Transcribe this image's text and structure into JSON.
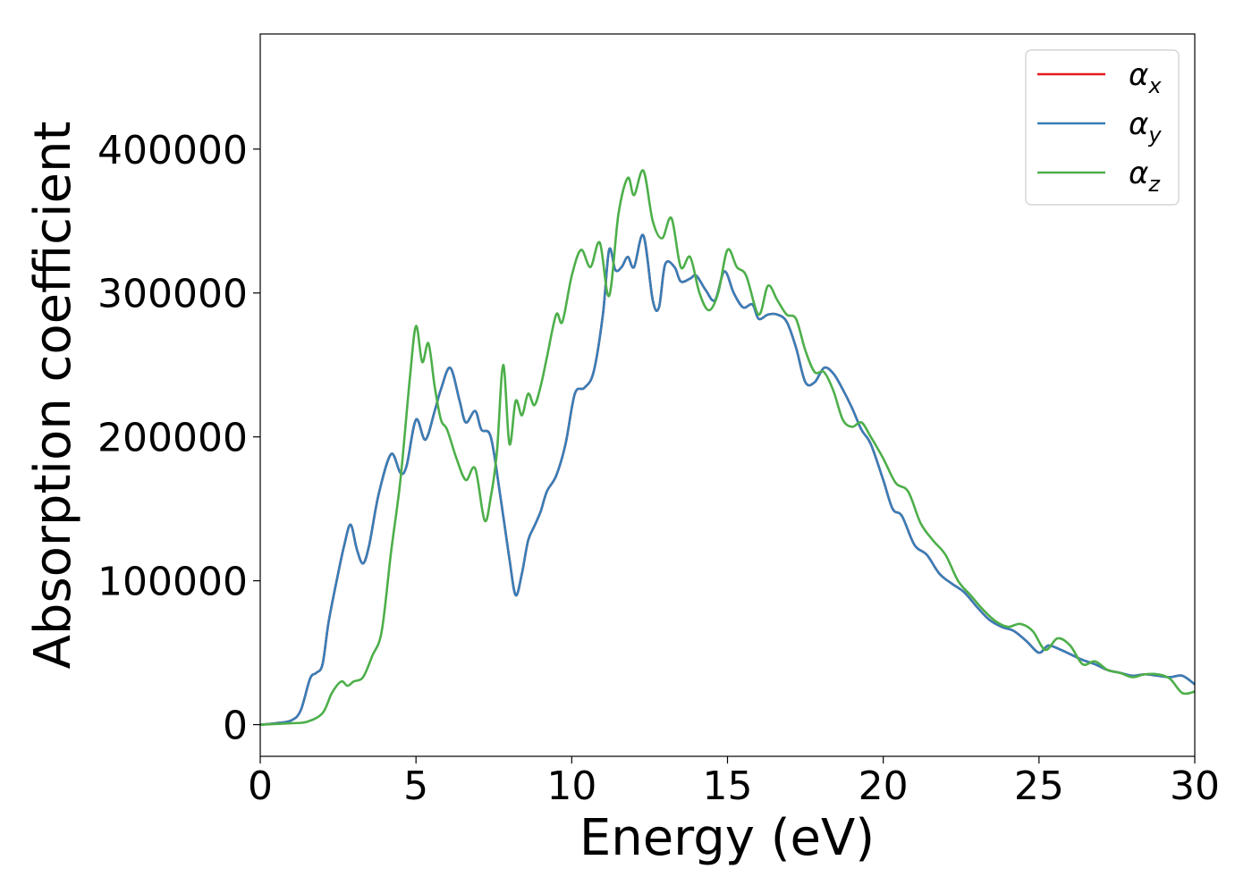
{
  "chart_data": {
    "type": "line",
    "title": "",
    "xlabel": "Energy (eV)",
    "ylabel": "Absorption coefficient",
    "xlim": [
      0,
      30
    ],
    "ylim": [
      -22000,
      480000
    ],
    "xticks": [
      "0",
      "5",
      "10",
      "15",
      "20",
      "25",
      "30"
    ],
    "xtick_values": [
      0,
      5,
      10,
      15,
      20,
      25,
      30
    ],
    "yticks": [
      "0",
      "100000",
      "200000",
      "300000",
      "400000"
    ],
    "ytick_values": [
      0,
      100000,
      200000,
      300000,
      400000
    ],
    "grid": false,
    "legend_position": "top-right",
    "series": [
      {
        "name": "α_x",
        "label_base": "α",
        "label_sub": "x",
        "color": "#e41a1c",
        "x": [
          0,
          0.5,
          1,
          1.3,
          1.6,
          1.8,
          2,
          2.2,
          2.5,
          2.7,
          2.9,
          3.1,
          3.3,
          3.5,
          3.8,
          4.2,
          4.5,
          4.7,
          5,
          5.3,
          5.6,
          5.8,
          6.1,
          6.4,
          6.6,
          6.9,
          7.1,
          7.4,
          7.7,
          8,
          8.2,
          8.4,
          8.6,
          8.8,
          9,
          9.2,
          9.5,
          9.8,
          10.1,
          10.4,
          10.7,
          11,
          11.2,
          11.4,
          11.6,
          11.8,
          12,
          12.3,
          12.6,
          12.8,
          13,
          13.3,
          13.5,
          13.8,
          14,
          14.3,
          14.6,
          14.9,
          15.2,
          15.5,
          15.8,
          16,
          16.3,
          16.6,
          16.9,
          17.2,
          17.5,
          17.8,
          18.1,
          18.4,
          18.7,
          19,
          19.3,
          19.6,
          20,
          20.3,
          20.6,
          21,
          21.4,
          21.8,
          22.2,
          22.6,
          23,
          23.4,
          23.8,
          24.2,
          24.6,
          25,
          25.3,
          25.7,
          26,
          26.4,
          26.8,
          27.2,
          27.6,
          28,
          28.4,
          28.8,
          29.2,
          29.6,
          30
        ],
        "y": [
          0,
          1000,
          3000,
          10000,
          32000,
          36000,
          42000,
          72000,
          105000,
          125000,
          139000,
          122000,
          112000,
          125000,
          160000,
          188000,
          175000,
          180000,
          212000,
          198000,
          218000,
          233000,
          248000,
          225000,
          210000,
          218000,
          205000,
          200000,
          160000,
          115000,
          90000,
          105000,
          128000,
          138000,
          148000,
          162000,
          173000,
          195000,
          230000,
          234000,
          245000,
          285000,
          330000,
          316000,
          318000,
          325000,
          318000,
          340000,
          295000,
          290000,
          320000,
          318000,
          308000,
          310000,
          312000,
          302000,
          295000,
          315000,
          300000,
          290000,
          292000,
          282000,
          285000,
          285000,
          280000,
          262000,
          238000,
          238000,
          248000,
          244000,
          233000,
          220000,
          205000,
          195000,
          170000,
          150000,
          145000,
          125000,
          118000,
          105000,
          98000,
          92000,
          82000,
          73000,
          68000,
          65000,
          58000,
          50000,
          55000,
          52000,
          49000,
          45000,
          42000,
          38000,
          36000,
          34000,
          35000,
          34000,
          33000,
          34000,
          28000
        ]
      },
      {
        "name": "α_y",
        "label_base": "α",
        "label_sub": "y",
        "color": "#377eb8",
        "x": [
          0,
          0.5,
          1,
          1.3,
          1.6,
          1.8,
          2,
          2.2,
          2.5,
          2.7,
          2.9,
          3.1,
          3.3,
          3.5,
          3.8,
          4.2,
          4.5,
          4.7,
          5,
          5.3,
          5.6,
          5.8,
          6.1,
          6.4,
          6.6,
          6.9,
          7.1,
          7.4,
          7.7,
          8,
          8.2,
          8.4,
          8.6,
          8.8,
          9,
          9.2,
          9.5,
          9.8,
          10.1,
          10.4,
          10.7,
          11,
          11.2,
          11.4,
          11.6,
          11.8,
          12,
          12.3,
          12.6,
          12.8,
          13,
          13.3,
          13.5,
          13.8,
          14,
          14.3,
          14.6,
          14.9,
          15.2,
          15.5,
          15.8,
          16,
          16.3,
          16.6,
          16.9,
          17.2,
          17.5,
          17.8,
          18.1,
          18.4,
          18.7,
          19,
          19.3,
          19.6,
          20,
          20.3,
          20.6,
          21,
          21.4,
          21.8,
          22.2,
          22.6,
          23,
          23.4,
          23.8,
          24.2,
          24.6,
          25,
          25.3,
          25.7,
          26,
          26.4,
          26.8,
          27.2,
          27.6,
          28,
          28.4,
          28.8,
          29.2,
          29.6,
          30
        ],
        "y": [
          0,
          1000,
          3000,
          10000,
          32000,
          36000,
          42000,
          72000,
          105000,
          125000,
          139000,
          122000,
          112000,
          125000,
          160000,
          188000,
          175000,
          180000,
          212000,
          198000,
          218000,
          233000,
          248000,
          225000,
          210000,
          218000,
          205000,
          200000,
          160000,
          115000,
          90000,
          105000,
          128000,
          138000,
          148000,
          162000,
          173000,
          195000,
          230000,
          234000,
          245000,
          285000,
          330000,
          316000,
          318000,
          325000,
          318000,
          340000,
          295000,
          290000,
          320000,
          318000,
          308000,
          310000,
          312000,
          302000,
          295000,
          315000,
          300000,
          290000,
          292000,
          282000,
          285000,
          285000,
          280000,
          262000,
          238000,
          238000,
          248000,
          244000,
          233000,
          220000,
          205000,
          195000,
          170000,
          150000,
          145000,
          125000,
          118000,
          105000,
          98000,
          92000,
          82000,
          73000,
          68000,
          65000,
          58000,
          50000,
          55000,
          52000,
          49000,
          45000,
          42000,
          38000,
          36000,
          34000,
          35000,
          34000,
          33000,
          34000,
          28000
        ]
      },
      {
        "name": "α_z",
        "label_base": "α",
        "label_sub": "z",
        "color": "#4daf4a",
        "x": [
          0,
          1,
          1.5,
          2,
          2.3,
          2.6,
          2.8,
          3,
          3.3,
          3.6,
          3.9,
          4.2,
          4.5,
          4.8,
          5,
          5.2,
          5.4,
          5.6,
          5.8,
          6,
          6.3,
          6.6,
          6.9,
          7.2,
          7.4,
          7.6,
          7.8,
          8,
          8.2,
          8.4,
          8.6,
          8.8,
          9,
          9.2,
          9.5,
          9.7,
          10,
          10.3,
          10.6,
          10.9,
          11.2,
          11.5,
          11.8,
          12,
          12.3,
          12.6,
          12.9,
          13.2,
          13.5,
          13.8,
          14.1,
          14.4,
          14.7,
          15,
          15.3,
          15.6,
          16,
          16.3,
          16.6,
          16.9,
          17.2,
          17.5,
          17.8,
          18.1,
          18.4,
          18.7,
          19,
          19.3,
          19.6,
          20,
          20.4,
          20.8,
          21.2,
          21.6,
          22,
          22.4,
          22.8,
          23.2,
          23.6,
          24,
          24.4,
          24.8,
          25.2,
          25.6,
          26,
          26.4,
          26.8,
          27.2,
          27.6,
          28,
          28.4,
          28.8,
          29.2,
          29.6,
          30
        ],
        "y": [
          0,
          1000,
          2000,
          8000,
          22000,
          30000,
          27000,
          30000,
          33000,
          48000,
          65000,
          120000,
          170000,
          240000,
          277000,
          252000,
          265000,
          235000,
          212000,
          205000,
          185000,
          170000,
          178000,
          142000,
          158000,
          190000,
          250000,
          195000,
          225000,
          215000,
          230000,
          222000,
          235000,
          255000,
          285000,
          280000,
          312000,
          330000,
          318000,
          335000,
          298000,
          355000,
          380000,
          368000,
          385000,
          350000,
          338000,
          352000,
          318000,
          325000,
          300000,
          288000,
          300000,
          330000,
          318000,
          312000,
          285000,
          305000,
          295000,
          285000,
          282000,
          260000,
          245000,
          245000,
          232000,
          212000,
          207000,
          210000,
          200000,
          185000,
          168000,
          162000,
          140000,
          128000,
          118000,
          100000,
          90000,
          80000,
          72000,
          68000,
          70000,
          65000,
          52000,
          60000,
          55000,
          42000,
          44000,
          38000,
          36000,
          33000,
          35000,
          35000,
          32000,
          22000,
          23000
        ]
      }
    ]
  }
}
